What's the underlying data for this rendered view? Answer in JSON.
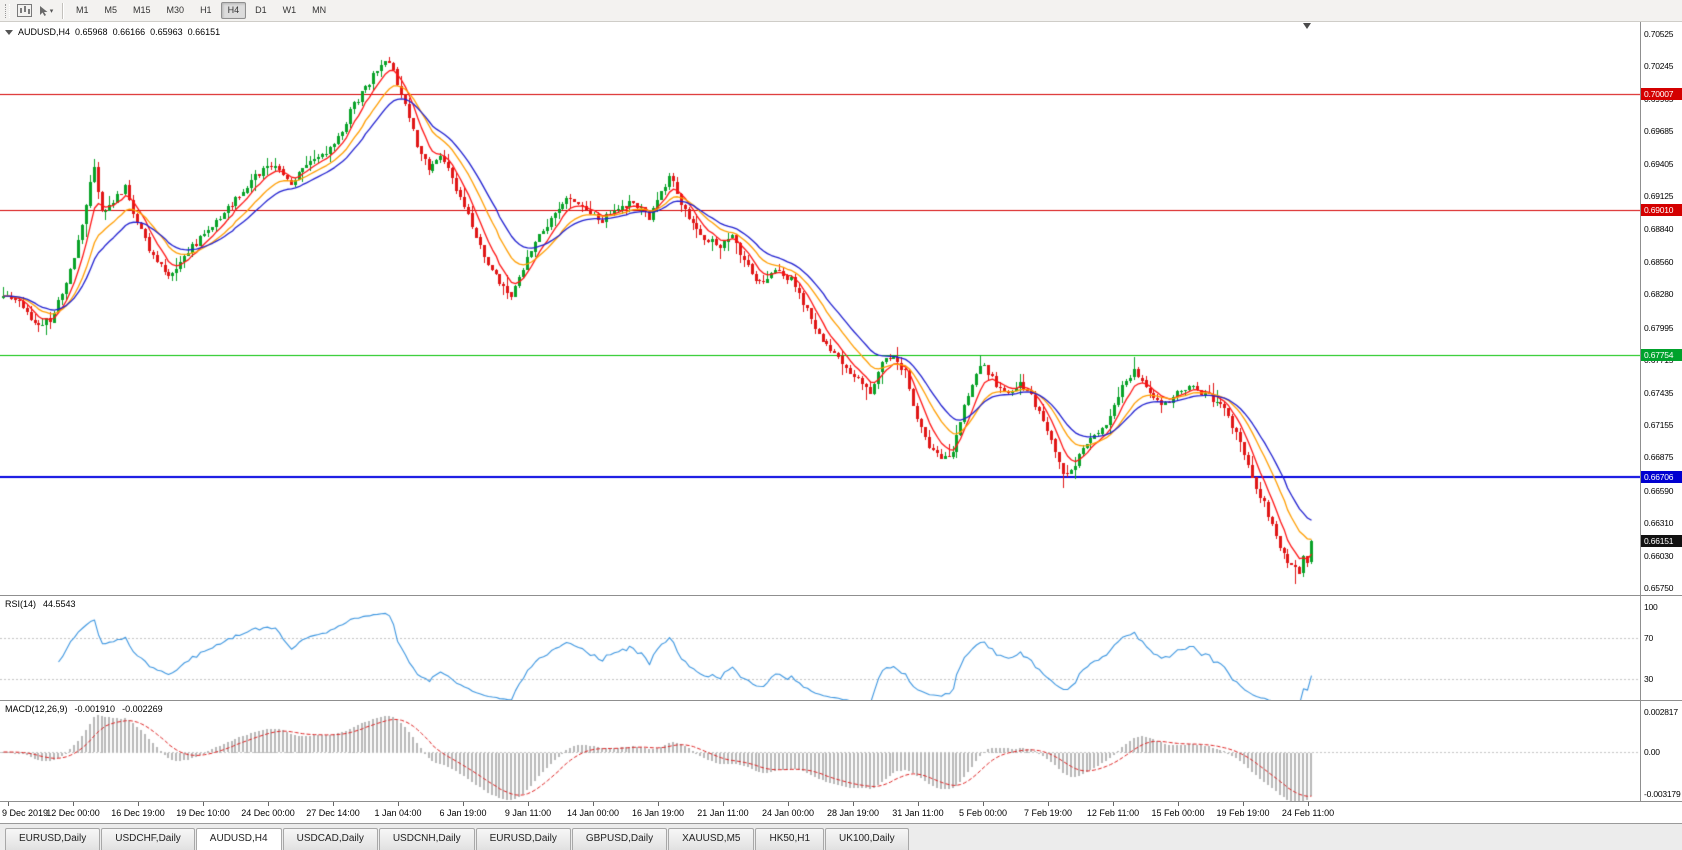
{
  "toolbar": {
    "timeframes": [
      {
        "label": "M1",
        "active": false
      },
      {
        "label": "M5",
        "active": false
      },
      {
        "label": "M15",
        "active": false
      },
      {
        "label": "M30",
        "active": false
      },
      {
        "label": "H1",
        "active": false
      },
      {
        "label": "H4",
        "active": true
      },
      {
        "label": "D1",
        "active": false
      },
      {
        "label": "W1",
        "active": false
      },
      {
        "label": "MN",
        "active": false
      }
    ]
  },
  "chart": {
    "symbol": "AUDUSD,H4",
    "open": "0.65968",
    "high": "0.66166",
    "low": "0.65963",
    "close": "0.66151",
    "price_axis_labels": [
      "0.70525",
      "0.70245",
      "0.69965",
      "0.69685",
      "0.69405",
      "0.69125",
      "0.68840",
      "0.68560",
      "0.68280",
      "0.67995",
      "0.67715",
      "0.67435",
      "0.67155",
      "0.66875",
      "0.66590",
      "0.66310",
      "0.66030",
      "0.65750"
    ],
    "axis_top_price": 0.70525,
    "axis_bottom_price": 0.6575,
    "hlines": [
      {
        "price": 0.70007,
        "label": "0.70007",
        "color": "#d40000",
        "badge_bg": "#d40000",
        "width": 1
      },
      {
        "price": 0.6901,
        "label": "0.69010",
        "color": "#d40000",
        "badge_bg": "#d40000",
        "width": 1
      },
      {
        "price": 0.67754,
        "label": "0.67754",
        "color": "#00c000",
        "badge_bg": "#00a22c",
        "width": 1
      },
      {
        "price": 0.66706,
        "label": "0.66706",
        "color": "#0000e0",
        "badge_bg": "#0000d0",
        "width": 2
      }
    ],
    "current_price_badge": {
      "label": "0.66151",
      "price": 0.66151,
      "bg": "#111111"
    },
    "time_labels": [
      "9 Dec 2019",
      "12 Dec 00:00",
      "16 Dec 19:00",
      "19 Dec 10:00",
      "24 Dec 00:00",
      "27 Dec 14:00",
      "1 Jan 04:00",
      "6 Jan 19:00",
      "9 Jan 11:00",
      "14 Jan 00:00",
      "16 Jan 19:00",
      "21 Jan 11:00",
      "24 Jan 00:00",
      "28 Jan 19:00",
      "31 Jan 11:00",
      "5 Feb 00:00",
      "7 Feb 19:00",
      "12 Feb 11:00",
      "15 Feb 00:00",
      "19 Feb 19:00",
      "24 Feb 11:00"
    ]
  },
  "chart_data": {
    "type": "candlestick",
    "symbol": "AUDUSD",
    "timeframe": "H4",
    "candle_count": 333,
    "close_waypoints": [
      [
        0,
        0.6827
      ],
      [
        4,
        0.6821
      ],
      [
        8,
        0.6802
      ],
      [
        12,
        0.6806
      ],
      [
        15,
        0.683
      ],
      [
        18,
        0.686
      ],
      [
        20,
        0.6886
      ],
      [
        22,
        0.6924
      ],
      [
        23,
        0.6936
      ],
      [
        25,
        0.6898
      ],
      [
        28,
        0.6908
      ],
      [
        31,
        0.692
      ],
      [
        34,
        0.689
      ],
      [
        38,
        0.686
      ],
      [
        42,
        0.6842
      ],
      [
        46,
        0.6862
      ],
      [
        50,
        0.6876
      ],
      [
        54,
        0.689
      ],
      [
        58,
        0.6906
      ],
      [
        62,
        0.6922
      ],
      [
        66,
        0.6936
      ],
      [
        70,
        0.6938
      ],
      [
        73,
        0.6924
      ],
      [
        76,
        0.6936
      ],
      [
        79,
        0.6944
      ],
      [
        82,
        0.6952
      ],
      [
        85,
        0.6962
      ],
      [
        88,
        0.6986
      ],
      [
        91,
        0.7002
      ],
      [
        94,
        0.7016
      ],
      [
        96,
        0.7028
      ],
      [
        98,
        0.703
      ],
      [
        100,
        0.701
      ],
      [
        102,
        0.699
      ],
      [
        105,
        0.6958
      ],
      [
        108,
        0.6936
      ],
      [
        111,
        0.695
      ],
      [
        114,
        0.6928
      ],
      [
        117,
        0.6904
      ],
      [
        120,
        0.6878
      ],
      [
        123,
        0.6854
      ],
      [
        126,
        0.6838
      ],
      [
        129,
        0.6828
      ],
      [
        132,
        0.6852
      ],
      [
        136,
        0.6878
      ],
      [
        140,
        0.6898
      ],
      [
        144,
        0.6912
      ],
      [
        148,
        0.69
      ],
      [
        152,
        0.6893
      ],
      [
        156,
        0.6902
      ],
      [
        160,
        0.6908
      ],
      [
        164,
        0.6893
      ],
      [
        167,
        0.6916
      ],
      [
        169,
        0.693
      ],
      [
        172,
        0.6908
      ],
      [
        175,
        0.6888
      ],
      [
        178,
        0.6876
      ],
      [
        182,
        0.687
      ],
      [
        185,
        0.6878
      ],
      [
        188,
        0.6856
      ],
      [
        192,
        0.6838
      ],
      [
        196,
        0.6848
      ],
      [
        200,
        0.684
      ],
      [
        204,
        0.6814
      ],
      [
        208,
        0.6786
      ],
      [
        212,
        0.6772
      ],
      [
        217,
        0.6754
      ],
      [
        220,
        0.6744
      ],
      [
        223,
        0.6768
      ],
      [
        226,
        0.6776
      ],
      [
        229,
        0.676
      ],
      [
        232,
        0.672
      ],
      [
        235,
        0.6695
      ],
      [
        238,
        0.6686
      ],
      [
        241,
        0.6692
      ],
      [
        244,
        0.673
      ],
      [
        247,
        0.676
      ],
      [
        249,
        0.6768
      ],
      [
        252,
        0.675
      ],
      [
        255,
        0.6742
      ],
      [
        258,
        0.6752
      ],
      [
        261,
        0.674
      ],
      [
        264,
        0.672
      ],
      [
        267,
        0.6692
      ],
      [
        269,
        0.6672
      ],
      [
        272,
        0.6682
      ],
      [
        275,
        0.67
      ],
      [
        278,
        0.671
      ],
      [
        281,
        0.6722
      ],
      [
        284,
        0.6748
      ],
      [
        287,
        0.6762
      ],
      [
        290,
        0.6746
      ],
      [
        294,
        0.6732
      ],
      [
        298,
        0.6742
      ],
      [
        302,
        0.6748
      ],
      [
        306,
        0.674
      ],
      [
        310,
        0.673
      ],
      [
        314,
        0.67
      ],
      [
        317,
        0.6668
      ],
      [
        320,
        0.6648
      ],
      [
        323,
        0.6618
      ],
      [
        326,
        0.6598
      ],
      [
        329,
        0.6588
      ],
      [
        330,
        0.6604
      ],
      [
        331,
        0.65968
      ],
      [
        332,
        0.66151
      ]
    ],
    "wick_overrides": [
      {
        "i": 12,
        "l": 0.6798
      },
      {
        "i": 23,
        "h": 0.6945
      },
      {
        "i": 98,
        "h": 0.7033
      },
      {
        "i": 129,
        "l": 0.6823
      },
      {
        "i": 219,
        "l": 0.6737
      },
      {
        "i": 248,
        "h": 0.6776
      },
      {
        "i": 269,
        "l": 0.6662
      },
      {
        "i": 287,
        "h": 0.6774
      },
      {
        "i": 328,
        "l": 0.6578
      }
    ],
    "moving_averages": [
      {
        "period": 6,
        "color": "#ff1414"
      },
      {
        "period": 13,
        "color": "#ff9d00"
      },
      {
        "period": 20,
        "color": "#1f1fd0"
      }
    ],
    "colors": {
      "up": "#09a228",
      "down": "#e01616",
      "hist": "#b8b8b8",
      "signal": "#dd2222"
    }
  },
  "rsi": {
    "name": "RSI(14)",
    "value": "44.5543",
    "axis_labels": [
      "100",
      "70",
      "30"
    ],
    "axis_values": [
      100,
      70,
      30
    ],
    "level_lines": [
      70,
      30
    ],
    "color": "#3d96e0",
    "period": 14
  },
  "macd": {
    "name": "MACD(12,26,9)",
    "main_value": "-0.001910",
    "signal_value": "-0.002269",
    "axis_labels": [
      "0.002817",
      "0.00",
      "-0.003179"
    ],
    "axis_values": [
      0.002817,
      0,
      -0.003179
    ],
    "fast": 12,
    "slow": 26,
    "signal": 9
  },
  "tabs": [
    {
      "label": "EURUSD,Daily",
      "active": false
    },
    {
      "label": "USDCHF,Daily",
      "active": false
    },
    {
      "label": "AUDUSD,H4",
      "active": true
    },
    {
      "label": "USDCAD,Daily",
      "active": false
    },
    {
      "label": "USDCNH,Daily",
      "active": false
    },
    {
      "label": "EURUSD,Daily",
      "active": false
    },
    {
      "label": "GBPUSD,Daily",
      "active": false
    },
    {
      "label": "XAUUSD,M5",
      "active": false
    },
    {
      "label": "HK50,H1",
      "active": false
    },
    {
      "label": "UK100,Daily",
      "active": false
    }
  ]
}
